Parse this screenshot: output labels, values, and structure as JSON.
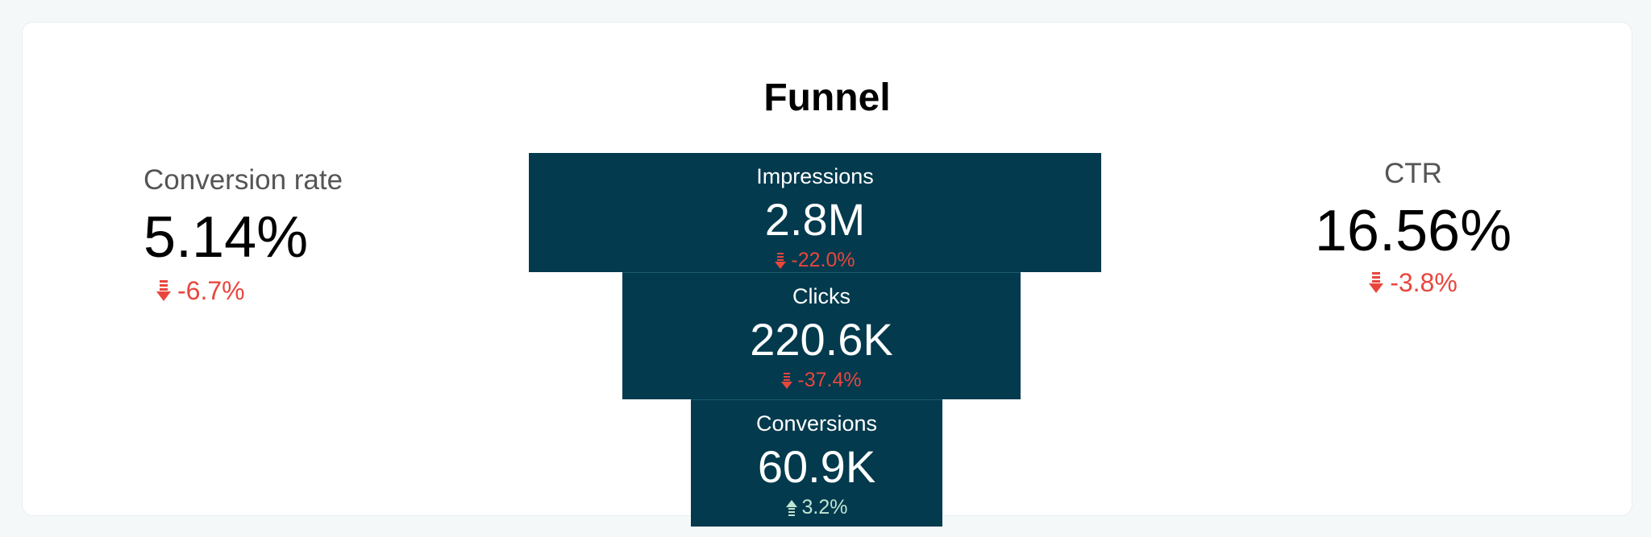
{
  "colors": {
    "stage_fill": "#033a4e",
    "negative": "#e8463d",
    "positive": "#bfe6d2",
    "card_bg": "#ffffff",
    "page_bg": "#f4f8f9"
  },
  "title": "Funnel",
  "left_kpi": {
    "label": "Conversion rate",
    "value": "5.14%",
    "delta": "-6.7%",
    "direction": "down",
    "icon": "arrow-down-icon"
  },
  "right_kpi": {
    "label": "CTR",
    "value": "16.56%",
    "delta": "-3.8%",
    "direction": "down",
    "icon": "arrow-down-icon"
  },
  "chart_data": {
    "type": "funnel",
    "title": "Funnel",
    "stages": [
      {
        "label": "Impressions",
        "display_value": "2.8M",
        "value": 2800000,
        "delta": "-22.0%",
        "direction": "down"
      },
      {
        "label": "Clicks",
        "display_value": "220.6K",
        "value": 220600,
        "delta": "-37.4%",
        "direction": "down"
      },
      {
        "label": "Conversions",
        "display_value": "60.9K",
        "value": 60900,
        "delta": "3.2%",
        "direction": "up"
      }
    ]
  }
}
